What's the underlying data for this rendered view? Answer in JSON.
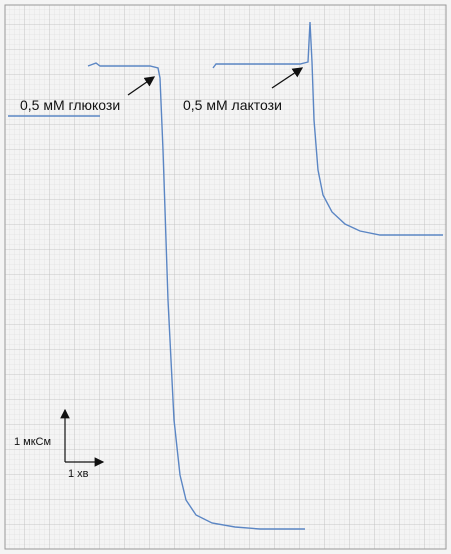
{
  "annotations": [
    "0,5 мМ глюкози",
    "0,5 мМ лактози"
  ],
  "scale_bar": {
    "y_label": "1 мкСм",
    "x_label": "1 хв"
  }
}
